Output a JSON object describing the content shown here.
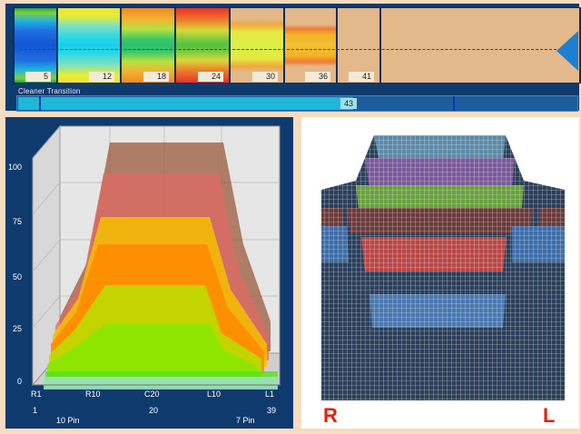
{
  "lane": {
    "segments": [
      {
        "label": "5"
      },
      {
        "label": "12"
      },
      {
        "label": "18"
      },
      {
        "label": "24"
      },
      {
        "label": "30"
      },
      {
        "label": "36"
      },
      {
        "label": "41"
      }
    ]
  },
  "transition": {
    "label": "Cleaner Transition",
    "value": "43",
    "fill_fraction": 0.6
  },
  "graph": {
    "y_ticks": [
      "100",
      "75",
      "50",
      "25",
      "0"
    ],
    "x_board_labels": [
      "R1",
      "R10",
      "C20",
      "L10",
      "L1"
    ],
    "x_number_labels": [
      "1",
      "20",
      "39"
    ],
    "pin_labels": [
      "10 Pin",
      "7 Pin"
    ]
  },
  "mesh": {
    "left_label": "R",
    "right_label": "L"
  },
  "colors": {
    "lane_wood": "#e3b88a",
    "panel_bg": "#0f3a6e",
    "accent_blue": "#1c7fd0",
    "transition_fill": "#1fb7d8",
    "mesh_label": "#e8200c"
  }
}
